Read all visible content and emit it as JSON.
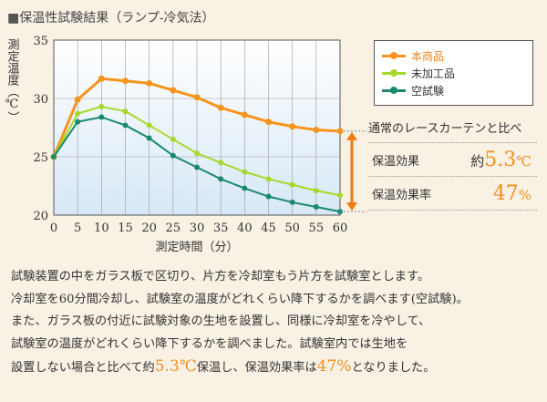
{
  "page_title": "保温性試験結果（ランプ-冷気法）",
  "chart_data": {
    "type": "line",
    "title": "保温性試験結果（ランプ-冷気法）",
    "xlabel": "測定時間（分）",
    "ylabel": "測定温度（℃）",
    "x": [
      0,
      5,
      10,
      15,
      20,
      25,
      30,
      35,
      40,
      45,
      50,
      55,
      60
    ],
    "xlim": [
      0,
      60
    ],
    "ylim": [
      20,
      35
    ],
    "yticks": [
      20,
      25,
      30,
      35
    ],
    "grid": true,
    "legend_position": "right",
    "series": [
      {
        "name": "本商品",
        "color": "#f7941d",
        "values": [
          25.0,
          29.9,
          31.7,
          31.5,
          31.3,
          30.7,
          30.1,
          29.2,
          28.6,
          28.0,
          27.6,
          27.3,
          27.2
        ]
      },
      {
        "name": "未加工品",
        "color": "#a6d92b",
        "values": [
          25.0,
          28.7,
          29.3,
          28.9,
          27.7,
          26.5,
          25.3,
          24.5,
          23.7,
          23.1,
          22.6,
          22.1,
          21.7
        ]
      },
      {
        "name": "空試験",
        "color": "#1a8a6e",
        "values": [
          25.0,
          28.0,
          28.4,
          27.7,
          26.6,
          25.1,
          24.1,
          23.1,
          22.3,
          21.6,
          21.1,
          20.7,
          20.3
        ]
      }
    ]
  },
  "results": {
    "heading": "通常のレースカーテンと比べ",
    "warmth_label": "保温効果",
    "warmth_prefix": "約",
    "warmth_value": "5.3",
    "warmth_unit": "℃",
    "rate_label": "保温効果率",
    "rate_value": "47",
    "rate_unit": "%"
  },
  "description": {
    "line1": "試験装置の中をガラス板で区切り、片方を冷却室もう片方を試験室とします。",
    "line2": "冷却室を60分間冷却し、試験室の温度がどれくらい降下するかを調べます(空試験)。",
    "line3": "また、ガラス板の付近に試験対象の生地を設置し、同様に冷却室を冷やして、",
    "line4": "試験室の温度がどれくらい降下するかを調べました。試験室内では生地を",
    "line5_a": "設置しない場合と比べて約",
    "line5_b": "5.3℃",
    "line5_c": "保温し、保温効果率は",
    "line5_d": "47%",
    "line5_e": "となりました。"
  }
}
